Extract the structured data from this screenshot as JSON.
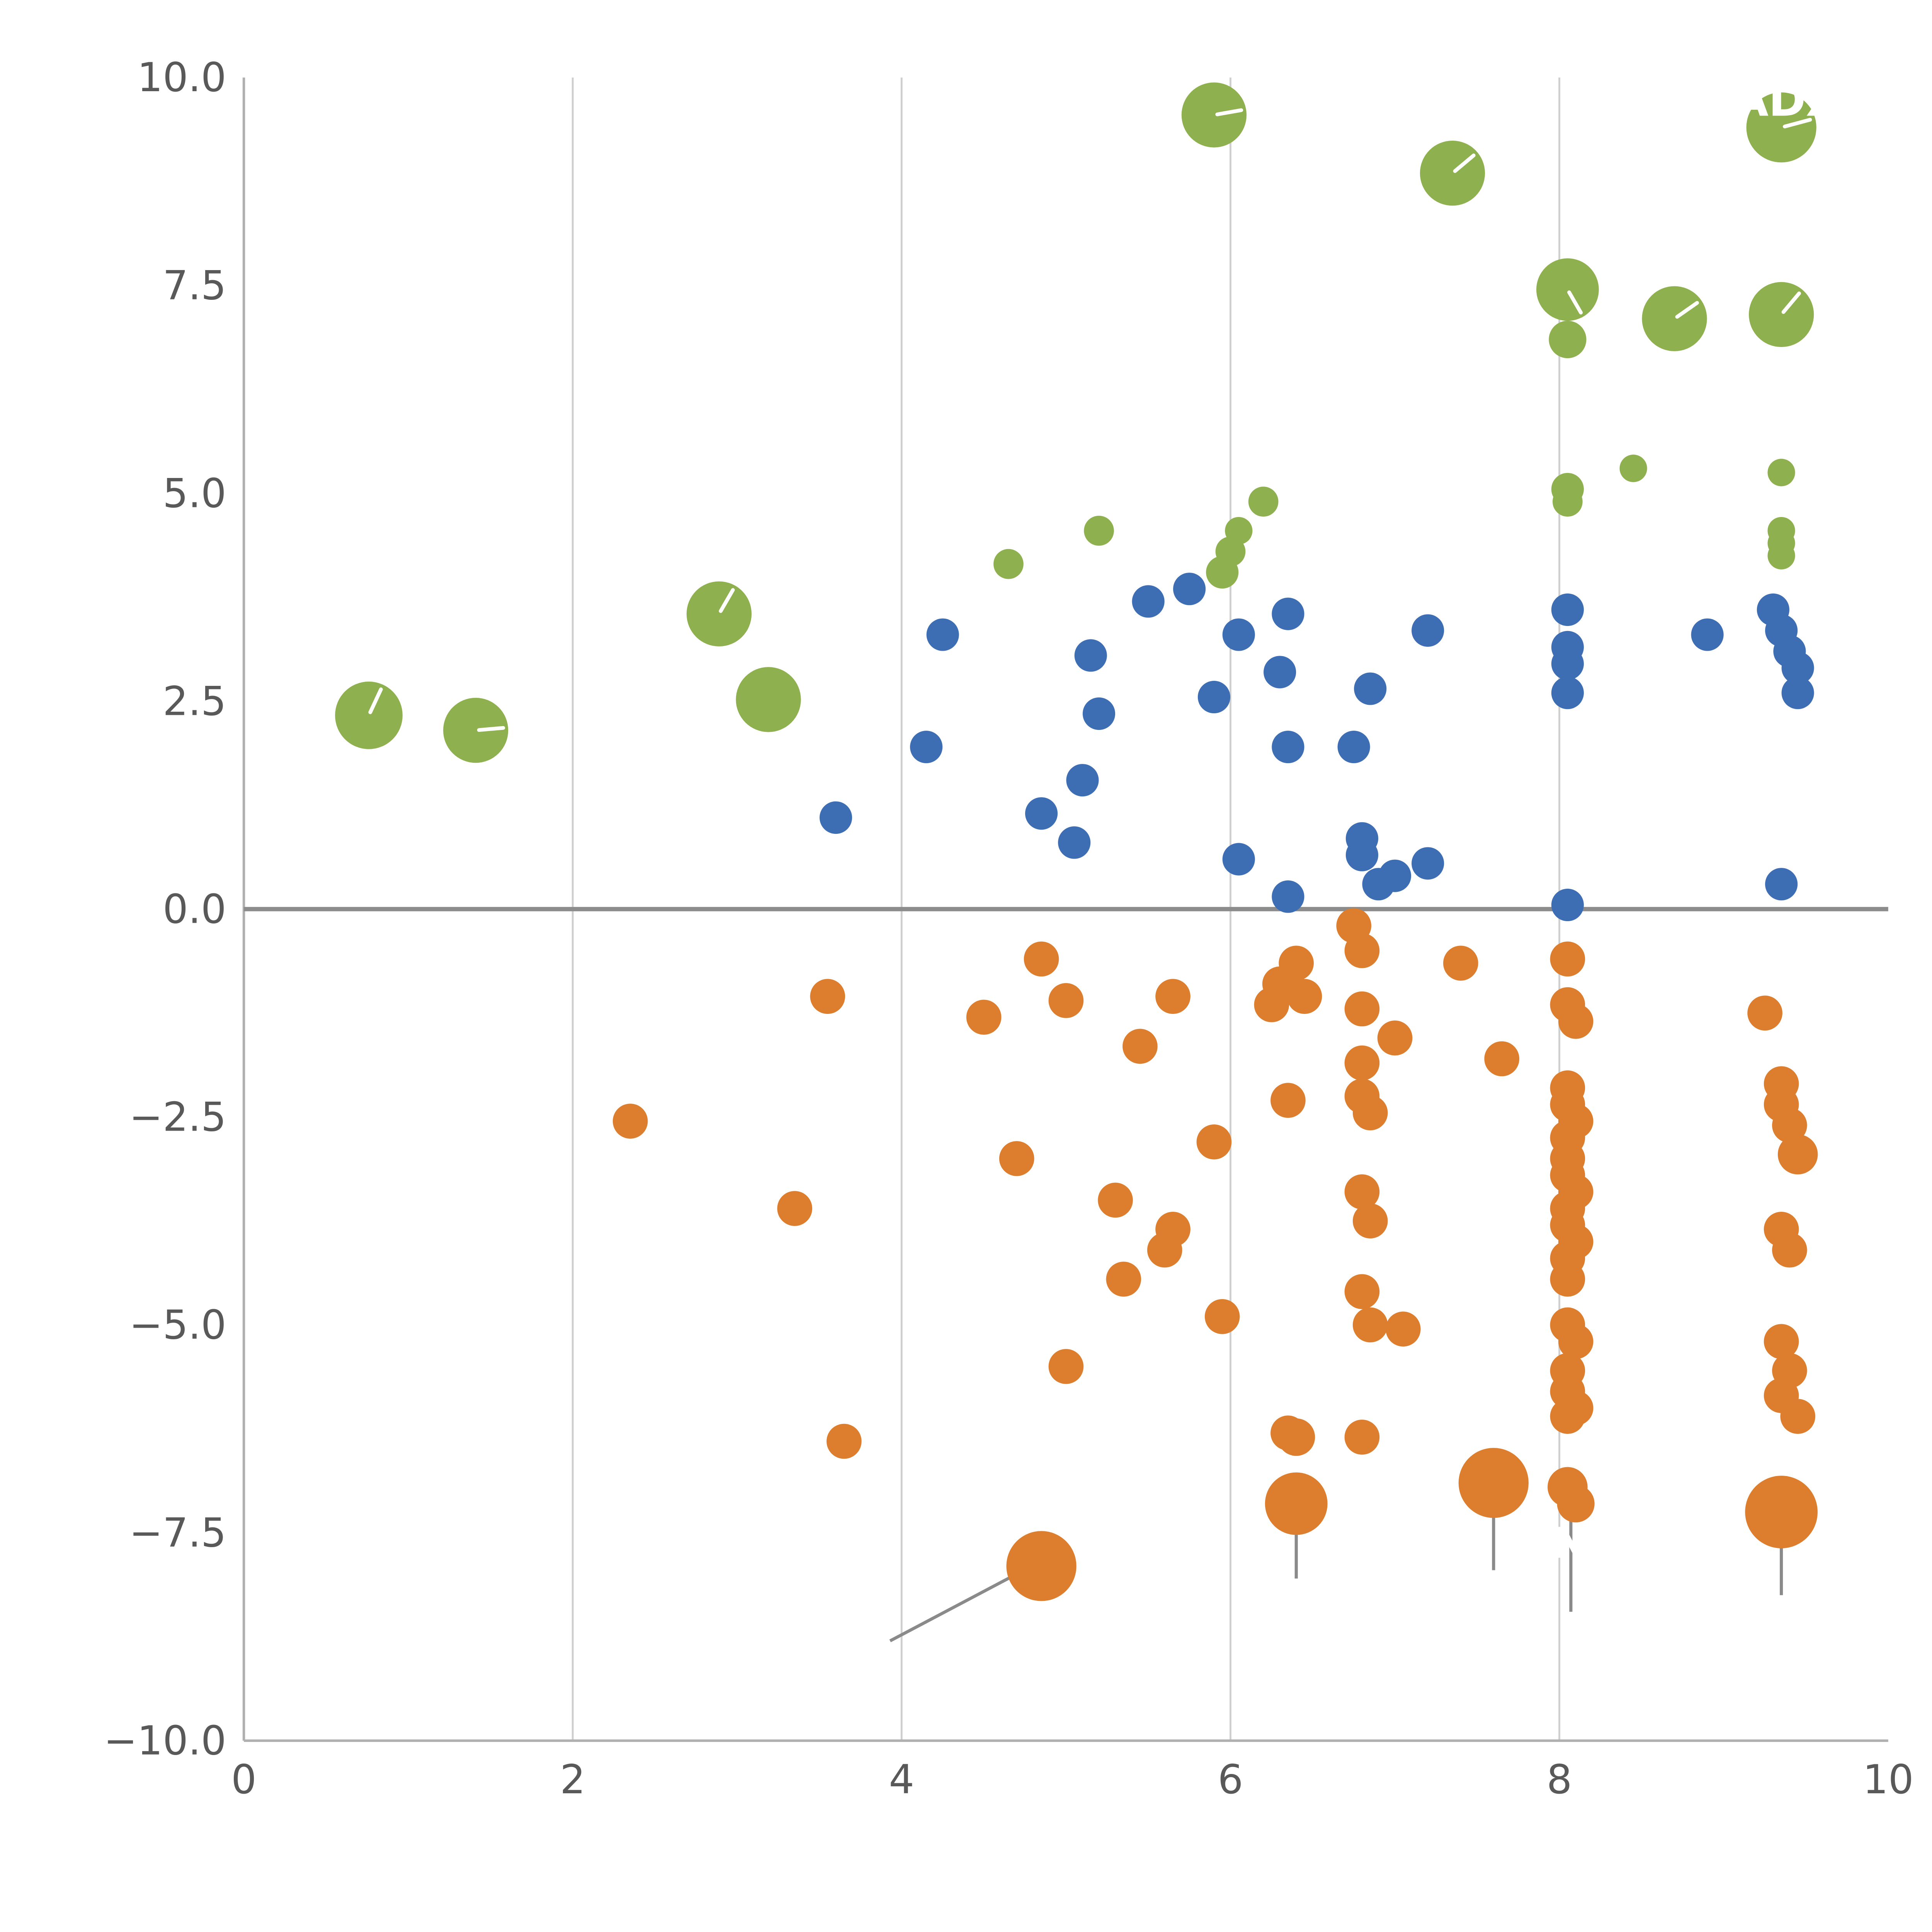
{
  "chart_data": {
    "type": "scatter",
    "title": "",
    "xlabel": "",
    "ylabel": "",
    "xlim": [
      0,
      10
    ],
    "ylim": [
      -10,
      10
    ],
    "x_ticks": [
      0,
      2,
      4,
      6,
      8,
      10
    ],
    "x_tick_labels": [
      "0",
      "2",
      "4",
      "6",
      "8",
      "10"
    ],
    "y_ticks": [
      10,
      7.5,
      5,
      2.5,
      0,
      -2.5,
      -5,
      -7.5,
      -10
    ],
    "y_tick_labels": [
      "10.0",
      "7.5",
      "5.0",
      "2.5",
      "0.0",
      "−2.5",
      "−5.0",
      "−7.5",
      "−10.0"
    ],
    "grid_x": [
      2,
      4,
      6,
      8
    ],
    "zero_line_y": 0,
    "colors": {
      "green": "#8fb04e",
      "blue": "#3d6eb4",
      "orange": "#dc7e2e",
      "grid": "#cfcfcf",
      "spine": "#b0b0b0",
      "zero_line": "#8c8c8c",
      "tick_label": "#595959",
      "stem": "#8a8a8a",
      "bubble_tick": "#ffffff"
    },
    "series": [
      {
        "name": "green",
        "color_key": "green",
        "r_default": 12,
        "points": [
          {
            "x": 0.76,
            "y": 2.33,
            "r": 27,
            "tick": 65
          },
          {
            "x": 1.41,
            "y": 2.15,
            "r": 26,
            "tick": 5
          },
          {
            "x": 2.89,
            "y": 3.55,
            "r": 26,
            "tick": 60
          },
          {
            "x": 3.19,
            "y": 2.52,
            "r": 26
          },
          {
            "x": 5.9,
            "y": 9.55,
            "r": 26,
            "tick": 10
          },
          {
            "x": 7.35,
            "y": 8.85,
            "r": 26,
            "tick": 40
          },
          {
            "x": 8.05,
            "y": 7.45,
            "r": 25,
            "tick": -60
          },
          {
            "x": 8.05,
            "y": 6.85,
            "r": 15
          },
          {
            "x": 8.7,
            "y": 7.1,
            "r": 26,
            "tick": 35
          },
          {
            "x": 9.35,
            "y": 9.4,
            "r": 28,
            "tick": 15
          },
          {
            "x": 9.35,
            "y": 7.15,
            "r": 26,
            "tick": 50
          },
          {
            "x": 4.65,
            "y": 4.15
          },
          {
            "x": 5.2,
            "y": 4.55
          },
          {
            "x": 5.95,
            "y": 4.05,
            "r": 13
          },
          {
            "x": 6.0,
            "y": 4.3
          },
          {
            "x": 6.05,
            "y": 4.55,
            "r": 11
          },
          {
            "x": 6.2,
            "y": 4.9
          },
          {
            "x": 8.05,
            "y": 5.05,
            "r": 13
          },
          {
            "x": 8.05,
            "y": 4.9
          },
          {
            "x": 8.45,
            "y": 5.3,
            "r": 11
          },
          {
            "x": 9.35,
            "y": 5.25,
            "r": 11
          },
          {
            "x": 9.35,
            "y": 4.55,
            "r": 11
          },
          {
            "x": 9.35,
            "y": 4.4,
            "r": 11
          },
          {
            "x": 9.35,
            "y": 4.25,
            "r": 11
          }
        ]
      },
      {
        "name": "blue",
        "color_key": "blue",
        "r_default": 13,
        "points": [
          {
            "x": 3.6,
            "y": 1.1
          },
          {
            "x": 4.15,
            "y": 1.95
          },
          {
            "x": 4.25,
            "y": 3.3
          },
          {
            "x": 4.85,
            "y": 1.15
          },
          {
            "x": 5.05,
            "y": 0.8
          },
          {
            "x": 5.1,
            "y": 1.55
          },
          {
            "x": 5.15,
            "y": 3.05
          },
          {
            "x": 5.2,
            "y": 2.35
          },
          {
            "x": 5.5,
            "y": 3.7
          },
          {
            "x": 5.75,
            "y": 3.85
          },
          {
            "x": 5.9,
            "y": 2.55
          },
          {
            "x": 6.05,
            "y": 3.3
          },
          {
            "x": 6.05,
            "y": 0.6
          },
          {
            "x": 6.3,
            "y": 2.85
          },
          {
            "x": 6.35,
            "y": 3.55
          },
          {
            "x": 6.35,
            "y": 1.95
          },
          {
            "x": 6.35,
            "y": 0.15
          },
          {
            "x": 6.75,
            "y": 1.95
          },
          {
            "x": 6.8,
            "y": 0.85
          },
          {
            "x": 6.8,
            "y": 0.65
          },
          {
            "x": 6.85,
            "y": 2.65
          },
          {
            "x": 6.9,
            "y": 0.3
          },
          {
            "x": 7.0,
            "y": 0.4
          },
          {
            "x": 7.2,
            "y": 0.55
          },
          {
            "x": 7.2,
            "y": 3.35
          },
          {
            "x": 8.05,
            "y": 3.6
          },
          {
            "x": 8.05,
            "y": 3.15
          },
          {
            "x": 8.05,
            "y": 2.95
          },
          {
            "x": 8.05,
            "y": 2.6
          },
          {
            "x": 8.05,
            "y": 0.05
          },
          {
            "x": 8.9,
            "y": 3.3
          },
          {
            "x": 9.3,
            "y": 3.6
          },
          {
            "x": 9.35,
            "y": 3.35
          },
          {
            "x": 9.4,
            "y": 3.1
          },
          {
            "x": 9.45,
            "y": 2.9
          },
          {
            "x": 9.45,
            "y": 2.6
          },
          {
            "x": 9.35,
            "y": 0.3
          }
        ]
      },
      {
        "name": "orange",
        "color_key": "orange",
        "r_default": 14,
        "points": [
          {
            "x": 2.35,
            "y": -2.55
          },
          {
            "x": 3.35,
            "y": -3.6
          },
          {
            "x": 3.55,
            "y": -1.05
          },
          {
            "x": 3.65,
            "y": -6.4
          },
          {
            "x": 4.5,
            "y": -1.3
          },
          {
            "x": 4.7,
            "y": -3.0
          },
          {
            "x": 4.85,
            "y": -0.6
          },
          {
            "x": 5.0,
            "y": -1.1
          },
          {
            "x": 5.0,
            "y": -5.5
          },
          {
            "x": 5.3,
            "y": -3.5
          },
          {
            "x": 5.35,
            "y": -4.45
          },
          {
            "x": 5.45,
            "y": -1.65
          },
          {
            "x": 5.6,
            "y": -4.1
          },
          {
            "x": 5.65,
            "y": -3.85
          },
          {
            "x": 5.65,
            "y": -1.05
          },
          {
            "x": 5.9,
            "y": -2.8
          },
          {
            "x": 5.95,
            "y": -4.9
          },
          {
            "x": 6.25,
            "y": -1.15
          },
          {
            "x": 6.3,
            "y": -0.9
          },
          {
            "x": 6.35,
            "y": -2.3
          },
          {
            "x": 6.4,
            "y": -0.65
          },
          {
            "x": 6.45,
            "y": -1.05
          },
          {
            "x": 6.35,
            "y": -6.3
          },
          {
            "x": 6.75,
            "y": -0.2
          },
          {
            "x": 6.8,
            "y": -0.5
          },
          {
            "x": 6.8,
            "y": -1.2
          },
          {
            "x": 6.8,
            "y": -1.85
          },
          {
            "x": 6.8,
            "y": -2.25
          },
          {
            "x": 6.85,
            "y": -2.45
          },
          {
            "x": 6.8,
            "y": -3.4
          },
          {
            "x": 6.85,
            "y": -3.75
          },
          {
            "x": 6.8,
            "y": -4.6
          },
          {
            "x": 6.85,
            "y": -5.0
          },
          {
            "x": 7.0,
            "y": -1.55
          },
          {
            "x": 7.05,
            "y": -5.05
          },
          {
            "x": 6.8,
            "y": -6.35
          },
          {
            "x": 7.4,
            "y": -0.65
          },
          {
            "x": 7.65,
            "y": -1.8
          },
          {
            "x": 8.05,
            "y": -0.6
          },
          {
            "x": 8.05,
            "y": -1.15
          },
          {
            "x": 8.1,
            "y": -1.35
          },
          {
            "x": 8.05,
            "y": -2.15
          },
          {
            "x": 8.05,
            "y": -2.35
          },
          {
            "x": 8.1,
            "y": -2.55
          },
          {
            "x": 8.05,
            "y": -2.75
          },
          {
            "x": 8.05,
            "y": -3.0
          },
          {
            "x": 8.05,
            "y": -3.2
          },
          {
            "x": 8.1,
            "y": -3.4
          },
          {
            "x": 8.05,
            "y": -3.6
          },
          {
            "x": 8.05,
            "y": -3.8
          },
          {
            "x": 8.1,
            "y": -4.0
          },
          {
            "x": 8.05,
            "y": -4.2
          },
          {
            "x": 8.05,
            "y": -4.45
          },
          {
            "x": 8.05,
            "y": -5.0
          },
          {
            "x": 8.1,
            "y": -5.2
          },
          {
            "x": 8.05,
            "y": -5.55
          },
          {
            "x": 8.05,
            "y": -5.8
          },
          {
            "x": 8.1,
            "y": -6.0
          },
          {
            "x": 8.05,
            "y": -6.1
          },
          {
            "x": 8.05,
            "y": -6.95,
            "r": 16
          },
          {
            "x": 8.1,
            "y": -7.15,
            "r": 15
          },
          {
            "x": 9.25,
            "y": -1.25
          },
          {
            "x": 9.35,
            "y": -2.1
          },
          {
            "x": 9.35,
            "y": -2.35
          },
          {
            "x": 9.4,
            "y": -2.6
          },
          {
            "x": 9.45,
            "y": -2.95,
            "r": 16
          },
          {
            "x": 9.35,
            "y": -3.85
          },
          {
            "x": 9.4,
            "y": -4.1
          },
          {
            "x": 9.35,
            "y": -5.2
          },
          {
            "x": 9.4,
            "y": -5.55
          },
          {
            "x": 9.35,
            "y": -5.85
          },
          {
            "x": 9.45,
            "y": -6.1
          },
          {
            "x": 6.4,
            "y": -6.35,
            "r": 15
          },
          {
            "x": 4.85,
            "y": -7.9,
            "r": 28
          },
          {
            "x": 6.4,
            "y": -7.15,
            "r": 25
          },
          {
            "x": 7.6,
            "y": -6.9,
            "r": 28
          },
          {
            "x": 9.35,
            "y": -7.25,
            "r": 29
          }
        ]
      }
    ],
    "stems": [
      {
        "x1": 3.93,
        "y1": -8.8,
        "x2": 4.83,
        "y2": -7.86
      },
      {
        "x1": 6.4,
        "y1": -7.15,
        "x2": 6.4,
        "y2": -8.05
      },
      {
        "x1": 7.6,
        "y1": -6.9,
        "x2": 7.6,
        "y2": -7.95
      },
      {
        "x1": 8.07,
        "y1": -7.15,
        "x2": 8.07,
        "y2": -8.45
      },
      {
        "x1": 9.35,
        "y1": -7.25,
        "x2": 9.35,
        "y2": -8.25
      }
    ],
    "annotations": [
      {
        "text": "ADX",
        "x": 9.06,
        "y": 9.72,
        "size": 36,
        "weight": 600,
        "anchor": "start"
      },
      {
        "text": "EN",
        "x": 7.78,
        "y": -7.62,
        "size": 34,
        "weight": 600,
        "anchor": "start"
      }
    ]
  }
}
